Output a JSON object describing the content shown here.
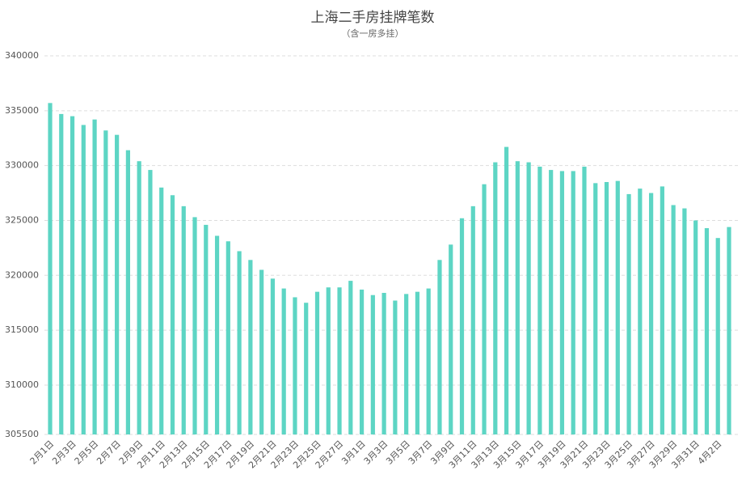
{
  "chart_data": {
    "type": "bar",
    "title": "上海二手房挂牌笔数",
    "subtitle": "（含一房多挂）",
    "categories": [
      "2月1日",
      null,
      "2月3日",
      null,
      "2月5日",
      null,
      "2月7日",
      null,
      "2月9日",
      null,
      "2月11日",
      null,
      "2月13日",
      null,
      "2月15日",
      null,
      "2月17日",
      null,
      "2月19日",
      null,
      "2月21日",
      null,
      "2月23日",
      null,
      "2月25日",
      null,
      "2月27日",
      null,
      "3月1日",
      null,
      "3月3日",
      null,
      "3月5日",
      null,
      "3月7日",
      null,
      "3月9日",
      null,
      "3月11日",
      null,
      "3月13日",
      null,
      "3月15日",
      null,
      "3月17日",
      null,
      "3月19日",
      null,
      "3月21日",
      null,
      "3月23日",
      null,
      "3月25日",
      null,
      "3月27日",
      null,
      "3月29日",
      null,
      "3月31日",
      null,
      "4月2日",
      null
    ],
    "values": [
      335700,
      334700,
      334500,
      333700,
      334200,
      333200,
      332800,
      331400,
      330400,
      329600,
      328000,
      327300,
      326300,
      325300,
      324600,
      323600,
      323100,
      322200,
      321400,
      320500,
      319700,
      318800,
      318000,
      317500,
      318500,
      318900,
      318900,
      319500,
      318700,
      318200,
      318400,
      317700,
      318300,
      318500,
      318800,
      321400,
      322800,
      325200,
      326300,
      328300,
      330300,
      331700,
      330400,
      330300,
      329900,
      329600,
      329500,
      329500,
      329900,
      328400,
      328500,
      328600,
      327400,
      327900,
      327500,
      328100,
      326400,
      326100,
      325000,
      324300,
      323400,
      324400
    ],
    "color": "#5dd5c4",
    "ylim": [
      305500,
      340000
    ],
    "yticks": [
      305500,
      310000,
      315000,
      320000,
      325000,
      330000,
      335000,
      340000
    ],
    "grid": true
  }
}
